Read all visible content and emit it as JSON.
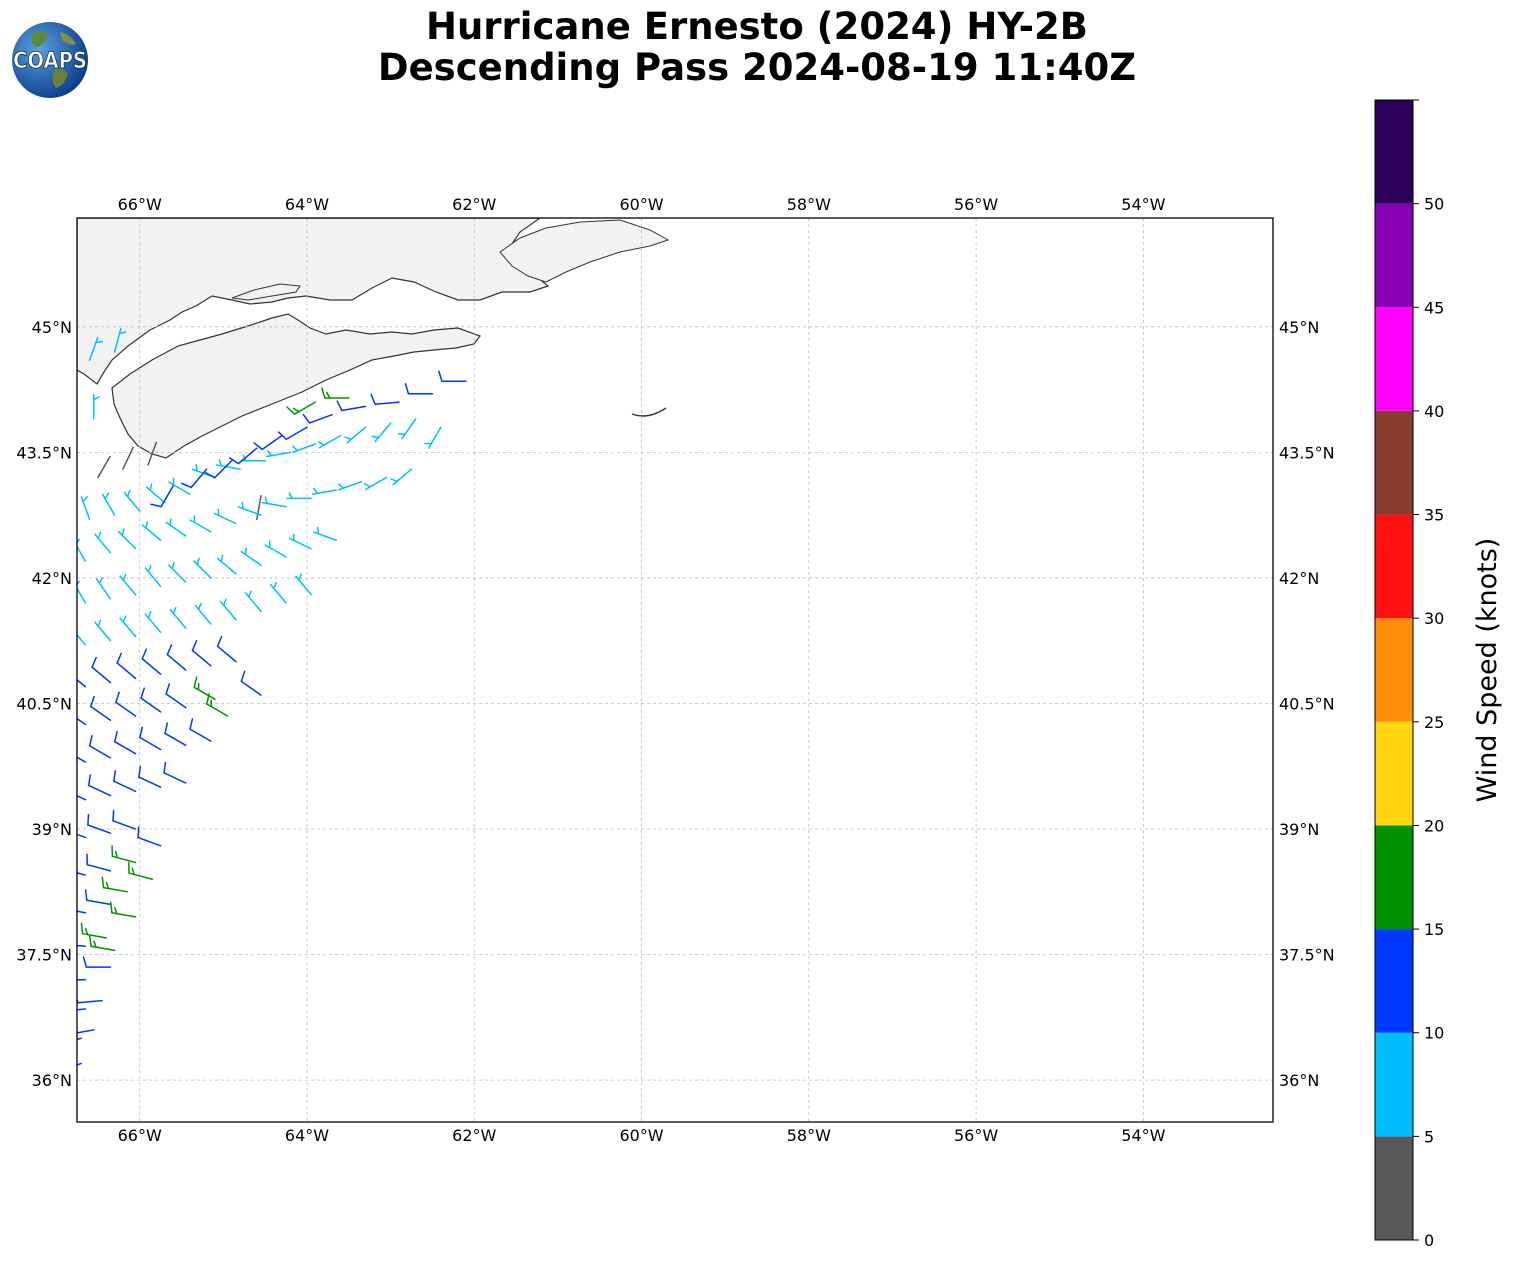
{
  "logo": {
    "text": "COAPS"
  },
  "title": {
    "line1": "Hurricane Ernesto (2024) HY-2B",
    "line2": "Descending Pass 2024-08-19 11:40Z"
  },
  "map": {
    "lon_range": [
      -66.75,
      -52.45
    ],
    "lat_range": [
      35.5,
      46.3
    ],
    "lon_ticks": [
      {
        "value": -66,
        "label": "66°W"
      },
      {
        "value": -64,
        "label": "64°W"
      },
      {
        "value": -62,
        "label": "62°W"
      },
      {
        "value": -60,
        "label": "60°W"
      },
      {
        "value": -58,
        "label": "58°W"
      },
      {
        "value": -56,
        "label": "56°W"
      },
      {
        "value": -54,
        "label": "54°W"
      }
    ],
    "lat_ticks": [
      {
        "value": 45,
        "label": "45°N"
      },
      {
        "value": 43.5,
        "label": "43.5°N"
      },
      {
        "value": 42,
        "label": "42°N"
      },
      {
        "value": 40.5,
        "label": "40.5°N"
      },
      {
        "value": 39,
        "label": "39°N"
      },
      {
        "value": 37.5,
        "label": "37.5°N"
      },
      {
        "value": 36,
        "label": "36°N"
      }
    ],
    "gridlines": true,
    "land_color": "#f2f2f2",
    "coast_color": "#333333"
  },
  "colorbar": {
    "label": "Wind Speed (knots)",
    "min": 0,
    "max": 55,
    "bins": [
      {
        "from": 0,
        "to": 5,
        "color": "#585858"
      },
      {
        "from": 5,
        "to": 10,
        "color": "#00bfff"
      },
      {
        "from": 10,
        "to": 15,
        "color": "#0037ff"
      },
      {
        "from": 15,
        "to": 20,
        "color": "#009200"
      },
      {
        "from": 20,
        "to": 25,
        "color": "#ffd511"
      },
      {
        "from": 25,
        "to": 30,
        "color": "#ff8f0b"
      },
      {
        "from": 30,
        "to": 35,
        "color": "#ff1111"
      },
      {
        "from": 35,
        "to": 40,
        "color": "#873c2c"
      },
      {
        "from": 40,
        "to": 45,
        "color": "#ff00ff"
      },
      {
        "from": 45,
        "to": 50,
        "color": "#8700b5"
      },
      {
        "from": 50,
        "to": 55,
        "color": "#2c0058"
      }
    ],
    "tick_labels": [
      "0",
      "5",
      "10",
      "15",
      "20",
      "25",
      "30",
      "35",
      "40",
      "45",
      "50"
    ]
  },
  "chart_data": {
    "type": "scatter",
    "description_units": "lon (deg E), lat (deg N), wind direction (deg from), speed (knots)",
    "wind_barbs": [
      [
        -66.6,
        44.6,
        20,
        8
      ],
      [
        -66.3,
        44.7,
        15,
        9
      ],
      [
        -66.55,
        43.9,
        360,
        7
      ],
      [
        -66.5,
        43.2,
        30,
        4
      ],
      [
        -66.2,
        43.3,
        25,
        3
      ],
      [
        -65.9,
        43.35,
        20,
        3
      ],
      [
        -64.6,
        42.7,
        10,
        4
      ],
      [
        -66.6,
        42.7,
        340,
        8
      ],
      [
        -66.3,
        42.75,
        330,
        8
      ],
      [
        -66.0,
        42.8,
        320,
        8
      ],
      [
        -65.7,
        42.9,
        310,
        8
      ],
      [
        -65.4,
        43.0,
        300,
        8
      ],
      [
        -65.1,
        43.2,
        290,
        8
      ],
      [
        -64.8,
        43.3,
        280,
        8
      ],
      [
        -64.5,
        43.4,
        270,
        8
      ],
      [
        -64.2,
        43.5,
        260,
        8
      ],
      [
        -63.9,
        43.6,
        250,
        8
      ],
      [
        -63.6,
        43.7,
        240,
        8
      ],
      [
        -63.3,
        43.8,
        230,
        8
      ],
      [
        -63.0,
        43.85,
        220,
        8
      ],
      [
        -62.7,
        43.9,
        215,
        8
      ],
      [
        -62.4,
        43.8,
        210,
        8
      ],
      [
        -65.6,
        43.1,
        210,
        12
      ],
      [
        -65.2,
        43.3,
        220,
        12
      ],
      [
        -64.9,
        43.4,
        225,
        12
      ],
      [
        -64.6,
        43.55,
        230,
        12
      ],
      [
        -64.3,
        43.7,
        235,
        12
      ],
      [
        -64.0,
        43.8,
        240,
        12
      ],
      [
        -63.7,
        43.95,
        250,
        12
      ],
      [
        -63.3,
        44.05,
        260,
        12
      ],
      [
        -62.9,
        44.1,
        265,
        12
      ],
      [
        -62.5,
        44.2,
        270,
        12
      ],
      [
        -62.1,
        44.35,
        270,
        12
      ],
      [
        -63.9,
        44.1,
        240,
        17
      ],
      [
        -63.5,
        44.15,
        270,
        17
      ],
      [
        -66.65,
        42.2,
        330,
        8
      ],
      [
        -66.35,
        42.3,
        320,
        8
      ],
      [
        -66.05,
        42.35,
        315,
        8
      ],
      [
        -65.75,
        42.45,
        310,
        8
      ],
      [
        -65.45,
        42.5,
        305,
        8
      ],
      [
        -65.15,
        42.55,
        300,
        8
      ],
      [
        -64.85,
        42.65,
        295,
        8
      ],
      [
        -64.55,
        42.75,
        290,
        8
      ],
      [
        -64.25,
        42.85,
        280,
        8
      ],
      [
        -63.95,
        42.95,
        270,
        8
      ],
      [
        -63.65,
        43.05,
        260,
        8
      ],
      [
        -63.35,
        43.15,
        250,
        8
      ],
      [
        -63.05,
        43.2,
        240,
        8
      ],
      [
        -62.75,
        43.3,
        230,
        8
      ],
      [
        -66.65,
        41.7,
        330,
        8
      ],
      [
        -66.35,
        41.75,
        325,
        8
      ],
      [
        -66.05,
        41.8,
        320,
        8
      ],
      [
        -65.75,
        41.9,
        320,
        8
      ],
      [
        -65.45,
        41.95,
        315,
        8
      ],
      [
        -65.15,
        42.0,
        315,
        8
      ],
      [
        -64.85,
        42.05,
        310,
        8
      ],
      [
        -64.55,
        42.15,
        305,
        8
      ],
      [
        -64.25,
        42.25,
        300,
        8
      ],
      [
        -63.95,
        42.35,
        295,
        8
      ],
      [
        -63.65,
        42.45,
        290,
        8
      ],
      [
        -66.65,
        41.2,
        320,
        8
      ],
      [
        -66.35,
        41.25,
        320,
        8
      ],
      [
        -66.05,
        41.3,
        320,
        8
      ],
      [
        -65.75,
        41.35,
        320,
        8
      ],
      [
        -65.45,
        41.4,
        320,
        8
      ],
      [
        -65.15,
        41.45,
        320,
        8
      ],
      [
        -64.85,
        41.5,
        320,
        8
      ],
      [
        -64.55,
        41.6,
        320,
        8
      ],
      [
        -64.25,
        41.7,
        320,
        8
      ],
      [
        -63.95,
        41.8,
        320,
        8
      ],
      [
        -66.65,
        40.7,
        310,
        12
      ],
      [
        -66.35,
        40.75,
        310,
        12
      ],
      [
        -66.05,
        40.8,
        310,
        12
      ],
      [
        -65.75,
        40.85,
        310,
        12
      ],
      [
        -65.45,
        40.9,
        310,
        12
      ],
      [
        -65.15,
        40.95,
        310,
        12
      ],
      [
        -64.85,
        41.0,
        310,
        12
      ],
      [
        -64.55,
        40.6,
        305,
        12
      ],
      [
        -66.65,
        40.25,
        305,
        12
      ],
      [
        -66.35,
        40.3,
        305,
        12
      ],
      [
        -66.05,
        40.35,
        305,
        12
      ],
      [
        -65.75,
        40.4,
        305,
        12
      ],
      [
        -65.45,
        40.45,
        305,
        12
      ],
      [
        -65.1,
        40.55,
        300,
        17
      ],
      [
        -64.95,
        40.35,
        300,
        17
      ],
      [
        -66.65,
        39.8,
        300,
        12
      ],
      [
        -66.35,
        39.85,
        300,
        12
      ],
      [
        -66.05,
        39.9,
        300,
        12
      ],
      [
        -65.75,
        39.95,
        300,
        12
      ],
      [
        -65.45,
        40.0,
        300,
        12
      ],
      [
        -65.15,
        40.05,
        300,
        12
      ],
      [
        -66.65,
        39.35,
        295,
        12
      ],
      [
        -66.35,
        39.4,
        295,
        12
      ],
      [
        -66.05,
        39.45,
        295,
        12
      ],
      [
        -65.75,
        39.5,
        295,
        12
      ],
      [
        -65.45,
        39.55,
        295,
        12
      ],
      [
        -66.65,
        38.9,
        290,
        12
      ],
      [
        -66.35,
        38.95,
        290,
        12
      ],
      [
        -66.05,
        39.0,
        290,
        12
      ],
      [
        -65.75,
        38.8,
        290,
        12
      ],
      [
        -66.65,
        38.45,
        285,
        12
      ],
      [
        -66.35,
        38.5,
        285,
        12
      ],
      [
        -66.05,
        38.6,
        285,
        17
      ],
      [
        -65.85,
        38.4,
        285,
        17
      ],
      [
        -66.65,
        38.0,
        280,
        12
      ],
      [
        -66.35,
        38.1,
        280,
        12
      ],
      [
        -66.15,
        38.25,
        280,
        17
      ],
      [
        -66.05,
        37.95,
        280,
        17
      ],
      [
        -66.65,
        37.6,
        275,
        12
      ],
      [
        -66.4,
        37.7,
        280,
        17
      ],
      [
        -66.3,
        37.55,
        280,
        17
      ],
      [
        -66.65,
        37.2,
        270,
        12
      ],
      [
        -66.35,
        37.35,
        270,
        12
      ],
      [
        -66.65,
        36.85,
        265,
        12
      ],
      [
        -66.45,
        36.95,
        265,
        12
      ],
      [
        -66.7,
        36.5,
        255,
        12
      ],
      [
        -66.55,
        36.6,
        260,
        12
      ],
      [
        -66.7,
        36.2,
        250,
        12
      ]
    ]
  }
}
